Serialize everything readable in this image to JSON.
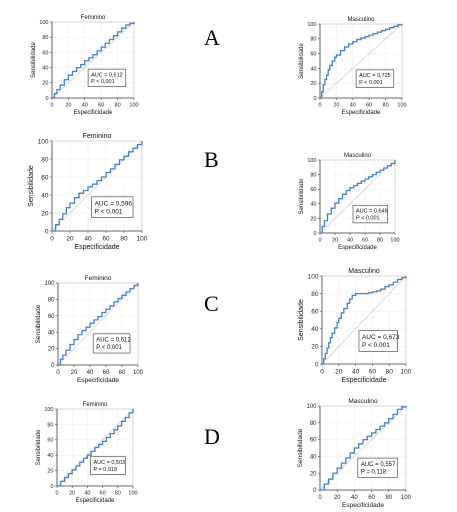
{
  "row_labels": [
    "A",
    "B",
    "C",
    "D"
  ],
  "chart_data": [
    {
      "type": "line",
      "row": "A",
      "title": "Feminino",
      "xlabel": "Especificidade",
      "ylabel": "Sensibilidade",
      "xlim": [
        0,
        100
      ],
      "ylim": [
        0,
        100
      ],
      "ticks": [
        0,
        20,
        40,
        60,
        80,
        100
      ],
      "annotation": [
        "AUC = 0,612",
        "P < 0,001"
      ],
      "series": [
        {
          "x": [
            0,
            3,
            6,
            10,
            15,
            20,
            25,
            30,
            35,
            40,
            45,
            50,
            55,
            60,
            65,
            70,
            75,
            80,
            85,
            90,
            95,
            100
          ],
          "y": [
            0,
            6,
            11,
            17,
            24,
            30,
            35,
            40,
            44,
            49,
            53,
            57,
            62,
            67,
            72,
            77,
            82,
            87,
            92,
            96,
            98,
            100
          ]
        }
      ],
      "reference": {
        "x": [
          0,
          100
        ],
        "y": [
          0,
          100
        ]
      },
      "color": "#4a7fc1"
    },
    {
      "type": "line",
      "row": "A",
      "title": "Masculino",
      "xlabel": "Especificidade",
      "ylabel": "Sensibilidade",
      "xlim": [
        0,
        100
      ],
      "ylim": [
        0,
        100
      ],
      "ticks": [
        0,
        20,
        40,
        60,
        80,
        100
      ],
      "annotation": [
        "AUC = 0,725",
        "P < 0,001"
      ],
      "series": [
        {
          "x": [
            0,
            2,
            4,
            6,
            8,
            10,
            12,
            15,
            18,
            20,
            25,
            30,
            35,
            40,
            45,
            50,
            55,
            60,
            65,
            70,
            75,
            80,
            85,
            90,
            95,
            100
          ],
          "y": [
            0,
            8,
            18,
            25,
            31,
            38,
            44,
            50,
            55,
            58,
            64,
            69,
            73,
            76,
            79,
            81,
            83,
            85,
            87,
            89,
            91,
            93,
            95,
            97,
            99,
            100
          ]
        }
      ],
      "reference": {
        "x": [
          0,
          100
        ],
        "y": [
          0,
          100
        ]
      },
      "color": "#4a7fc1"
    },
    {
      "type": "line",
      "row": "B",
      "title": "Feminino",
      "xlabel": "Especificidade",
      "ylabel": "Sensibilidade",
      "xlim": [
        0,
        100
      ],
      "ylim": [
        0,
        100
      ],
      "ticks": [
        0,
        20,
        40,
        60,
        80,
        100
      ],
      "annotation": [
        "AUC = 0,596",
        "P < 0,001"
      ],
      "series": [
        {
          "x": [
            0,
            4,
            8,
            12,
            16,
            20,
            25,
            30,
            35,
            40,
            45,
            50,
            55,
            60,
            65,
            70,
            75,
            80,
            85,
            90,
            95,
            100
          ],
          "y": [
            0,
            7,
            13,
            19,
            26,
            31,
            37,
            42,
            45,
            49,
            52,
            56,
            60,
            65,
            69,
            74,
            79,
            83,
            88,
            92,
            96,
            100
          ]
        }
      ],
      "reference": {
        "x": [
          0,
          100
        ],
        "y": [
          0,
          100
        ]
      },
      "color": "#4a7fc1"
    },
    {
      "type": "line",
      "row": "B",
      "title": "Masculino",
      "xlabel": "Especificidade",
      "ylabel": "Sensibilidade",
      "xlim": [
        0,
        100
      ],
      "ylim": [
        0,
        100
      ],
      "ticks": [
        0,
        20,
        40,
        60,
        80,
        100
      ],
      "annotation": [
        "AUC = 0,646",
        "P < 0,001"
      ],
      "series": [
        {
          "x": [
            0,
            3,
            6,
            10,
            15,
            20,
            25,
            30,
            35,
            40,
            45,
            50,
            55,
            60,
            65,
            70,
            75,
            80,
            85,
            90,
            95,
            100
          ],
          "y": [
            0,
            9,
            17,
            26,
            34,
            41,
            47,
            53,
            58,
            62,
            65,
            68,
            71,
            74,
            77,
            80,
            83,
            86,
            89,
            92,
            95,
            100
          ]
        }
      ],
      "reference": {
        "x": [
          0,
          100
        ],
        "y": [
          0,
          100
        ]
      },
      "color": "#4a7fc1"
    },
    {
      "type": "line",
      "row": "C",
      "title": "Feminino",
      "xlabel": "Especificidade",
      "ylabel": "Sensibilidade",
      "xlim": [
        0,
        100
      ],
      "ylim": [
        0,
        100
      ],
      "ticks": [
        0,
        20,
        40,
        60,
        80,
        100
      ],
      "annotation": [
        "AUC = 0,612",
        "P < 0,001"
      ],
      "series": [
        {
          "x": [
            0,
            3,
            6,
            10,
            15,
            20,
            25,
            30,
            35,
            40,
            45,
            50,
            55,
            60,
            65,
            70,
            75,
            80,
            85,
            90,
            95,
            100
          ],
          "y": [
            0,
            7,
            12,
            18,
            25,
            31,
            37,
            42,
            46,
            51,
            55,
            59,
            64,
            68,
            72,
            77,
            81,
            85,
            89,
            93,
            97,
            100
          ]
        }
      ],
      "reference": {
        "x": [
          0,
          100
        ],
        "y": [
          0,
          100
        ]
      },
      "color": "#4a7fc1"
    },
    {
      "type": "line",
      "row": "C",
      "title": "Masculino",
      "xlabel": "Especificidade",
      "ylabel": "Sensibilidade",
      "xlim": [
        0,
        100
      ],
      "ylim": [
        0,
        100
      ],
      "ticks": [
        0,
        20,
        40,
        60,
        80,
        100
      ],
      "annotation": [
        "AUC = 0,673",
        "P < 0,001"
      ],
      "series": [
        {
          "x": [
            0,
            2,
            4,
            6,
            8,
            10,
            12,
            15,
            18,
            20,
            23,
            26,
            30,
            33,
            36,
            40,
            45,
            50,
            55,
            60,
            65,
            70,
            75,
            80,
            85,
            90,
            95,
            100
          ],
          "y": [
            0,
            6,
            12,
            18,
            24,
            30,
            35,
            41,
            47,
            52,
            58,
            63,
            69,
            74,
            78,
            80,
            80,
            80,
            81,
            82,
            83,
            85,
            88,
            90,
            93,
            96,
            98,
            100
          ]
        }
      ],
      "reference": {
        "x": [
          0,
          100
        ],
        "y": [
          0,
          100
        ]
      },
      "color": "#4a7fc1"
    },
    {
      "type": "line",
      "row": "D",
      "title": "Feminino",
      "xlabel": "Especificidade",
      "ylabel": "Sensibilidade",
      "xlim": [
        0,
        100
      ],
      "ylim": [
        0,
        100
      ],
      "ticks": [
        0,
        20,
        40,
        60,
        80,
        100
      ],
      "annotation": [
        "AUC = 0,503",
        "P = 0,918"
      ],
      "series": [
        {
          "x": [
            0,
            5,
            10,
            15,
            20,
            25,
            30,
            35,
            40,
            45,
            50,
            55,
            60,
            65,
            70,
            75,
            80,
            85,
            90,
            95,
            100
          ],
          "y": [
            0,
            6,
            11,
            16,
            21,
            26,
            31,
            36,
            40,
            45,
            50,
            54,
            58,
            63,
            68,
            73,
            78,
            84,
            89,
            95,
            100
          ]
        }
      ],
      "reference": {
        "x": [
          0,
          100
        ],
        "y": [
          0,
          100
        ]
      },
      "color": "#4a7fc1"
    },
    {
      "type": "line",
      "row": "D",
      "title": "Masculino",
      "xlabel": "Especificidade",
      "ylabel": "Sensibilidade",
      "xlim": [
        0,
        100
      ],
      "ylim": [
        0,
        100
      ],
      "ticks": [
        0,
        20,
        40,
        60,
        80,
        100
      ],
      "annotation": [
        "AUC = 0,557",
        "P = 0,118"
      ],
      "series": [
        {
          "x": [
            0,
            5,
            10,
            15,
            20,
            25,
            30,
            35,
            40,
            45,
            50,
            55,
            60,
            65,
            70,
            75,
            80,
            85,
            90,
            95,
            100
          ],
          "y": [
            0,
            7,
            13,
            20,
            26,
            32,
            38,
            44,
            50,
            55,
            60,
            64,
            68,
            72,
            76,
            80,
            85,
            90,
            96,
            99,
            100
          ]
        }
      ],
      "reference": {
        "x": [
          0,
          100
        ],
        "y": [
          0,
          100
        ]
      },
      "color": "#4a7fc1"
    }
  ]
}
